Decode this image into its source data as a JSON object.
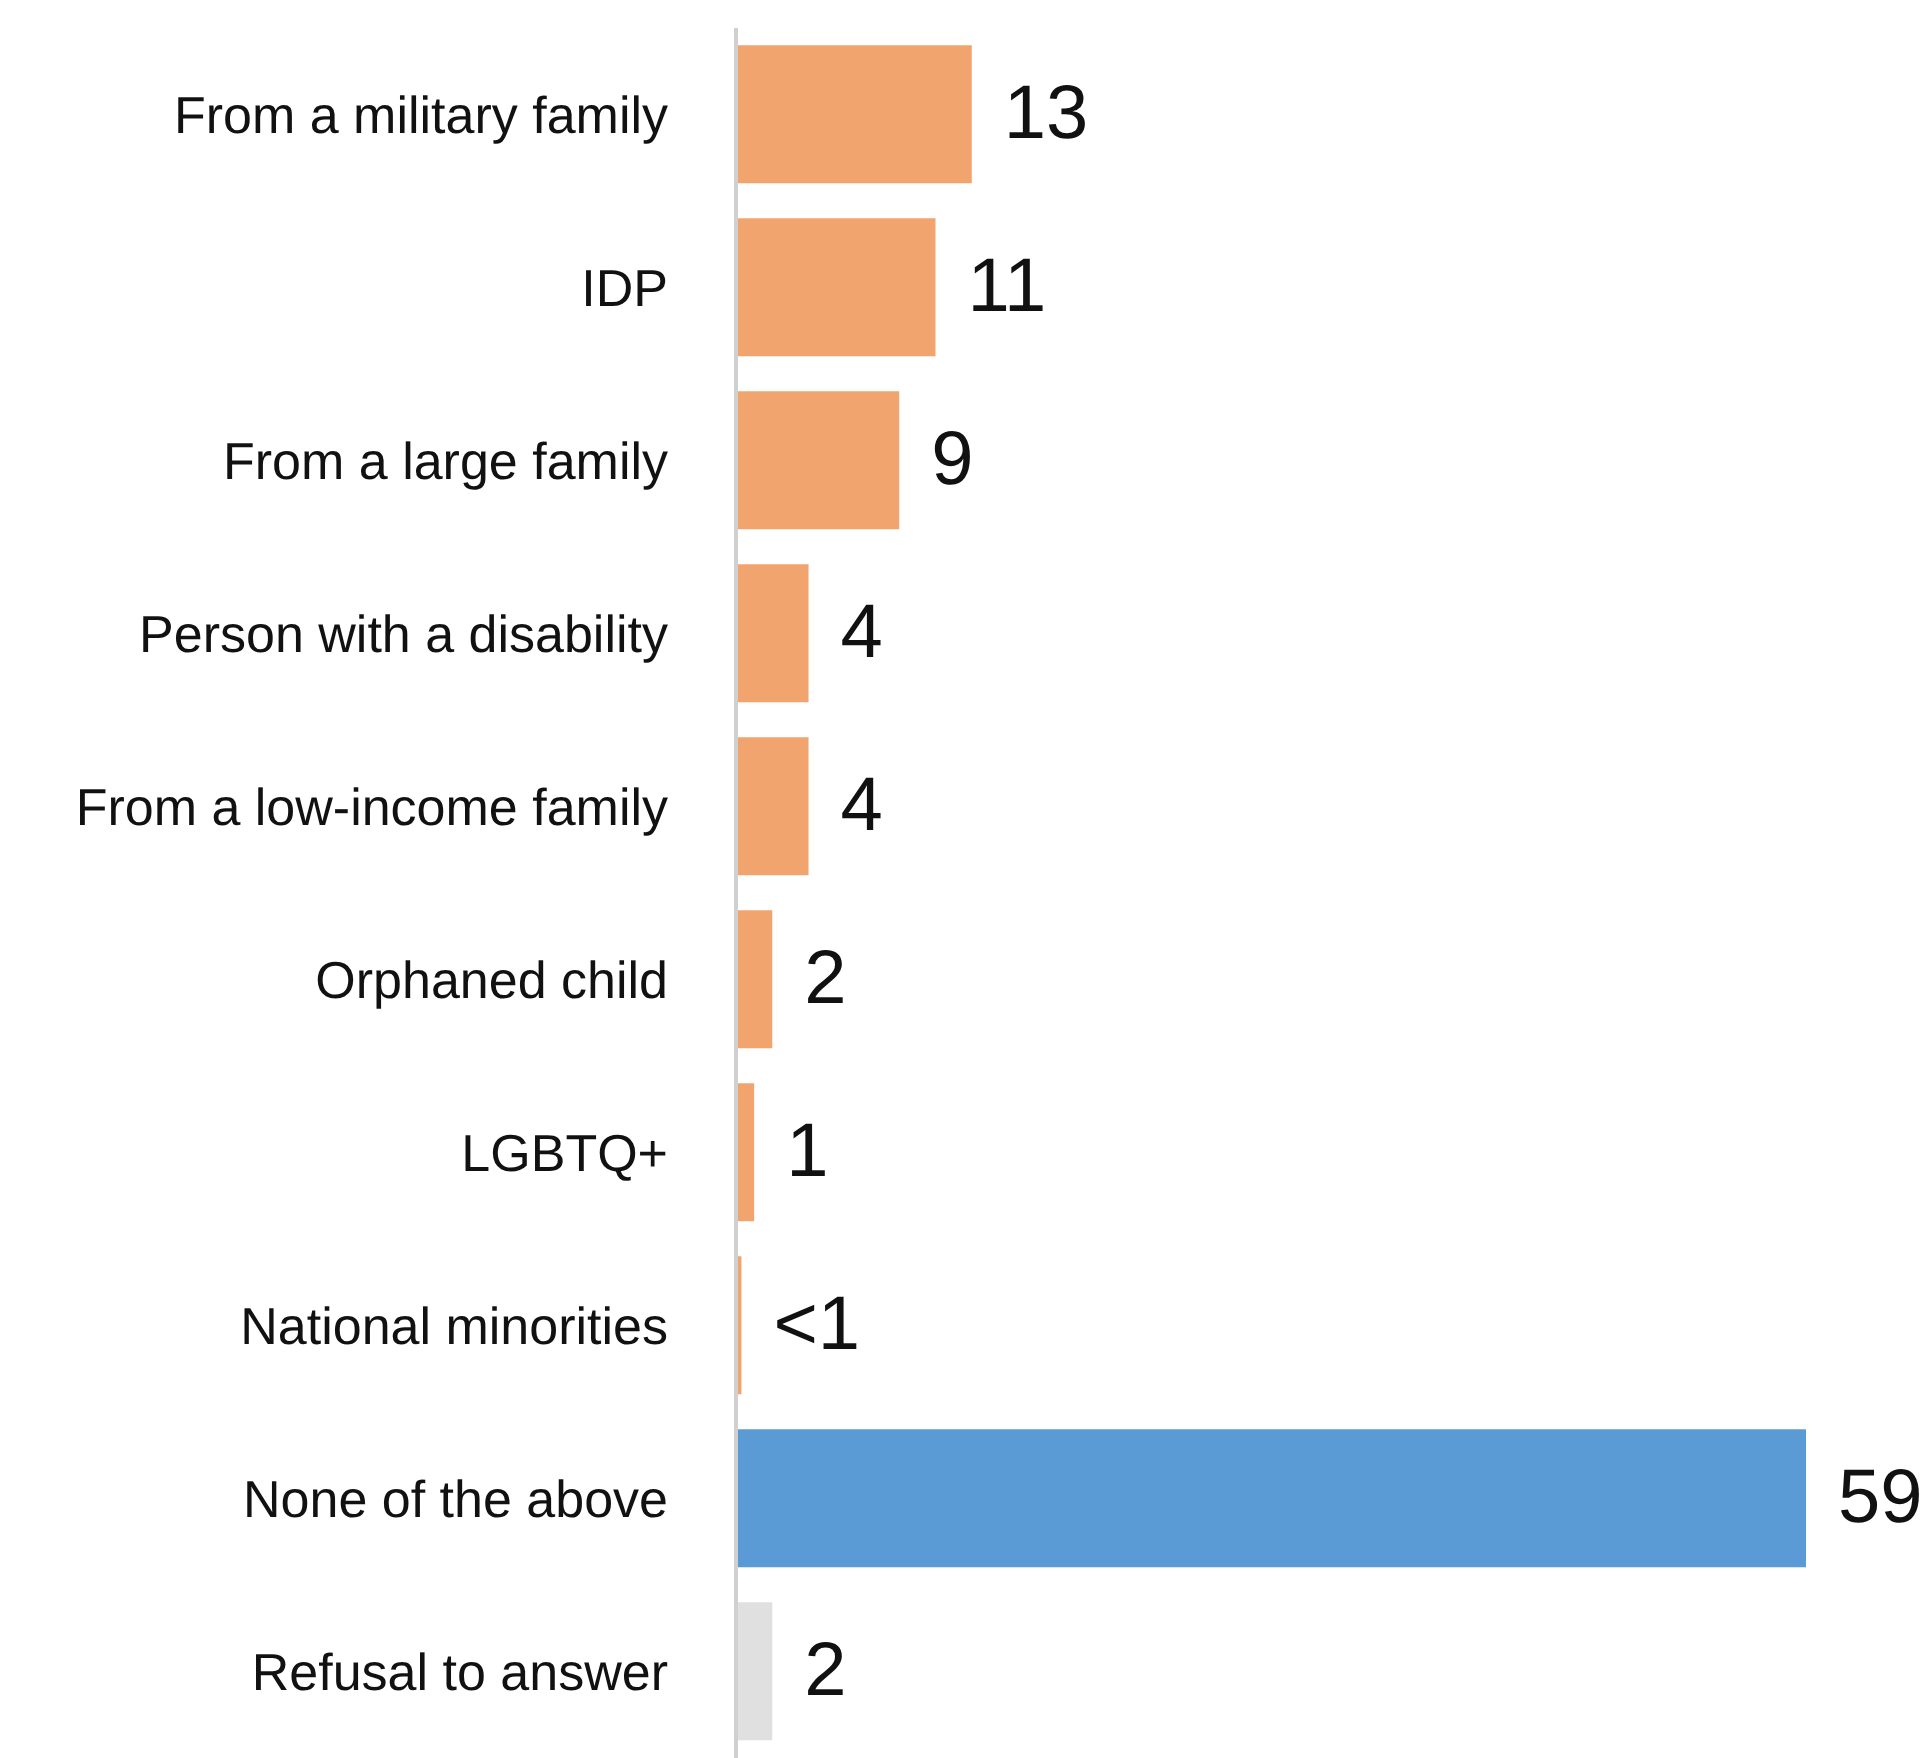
{
  "chart_data": {
    "type": "bar",
    "orientation": "horizontal",
    "categories": [
      "From a military family",
      "IDP",
      "From a large family",
      "Person with a disability",
      "From a low-income family",
      "Orphaned child",
      "LGBTQ+",
      "National minorities",
      "None of the above",
      "Refusal to answer"
    ],
    "values": [
      13,
      11,
      9,
      4,
      4,
      2,
      1,
      0.3,
      59,
      2
    ],
    "value_labels": [
      "13",
      "11",
      "9",
      "4",
      "4",
      "2",
      "1",
      "<1",
      "59",
      "2"
    ],
    "colors": [
      "#f2a46e",
      "#f2a46e",
      "#f2a46e",
      "#f2a46e",
      "#f2a46e",
      "#f2a46e",
      "#f2a46e",
      "#f2a46e",
      "#5b9bd5",
      "#e0e0e0"
    ]
  }
}
